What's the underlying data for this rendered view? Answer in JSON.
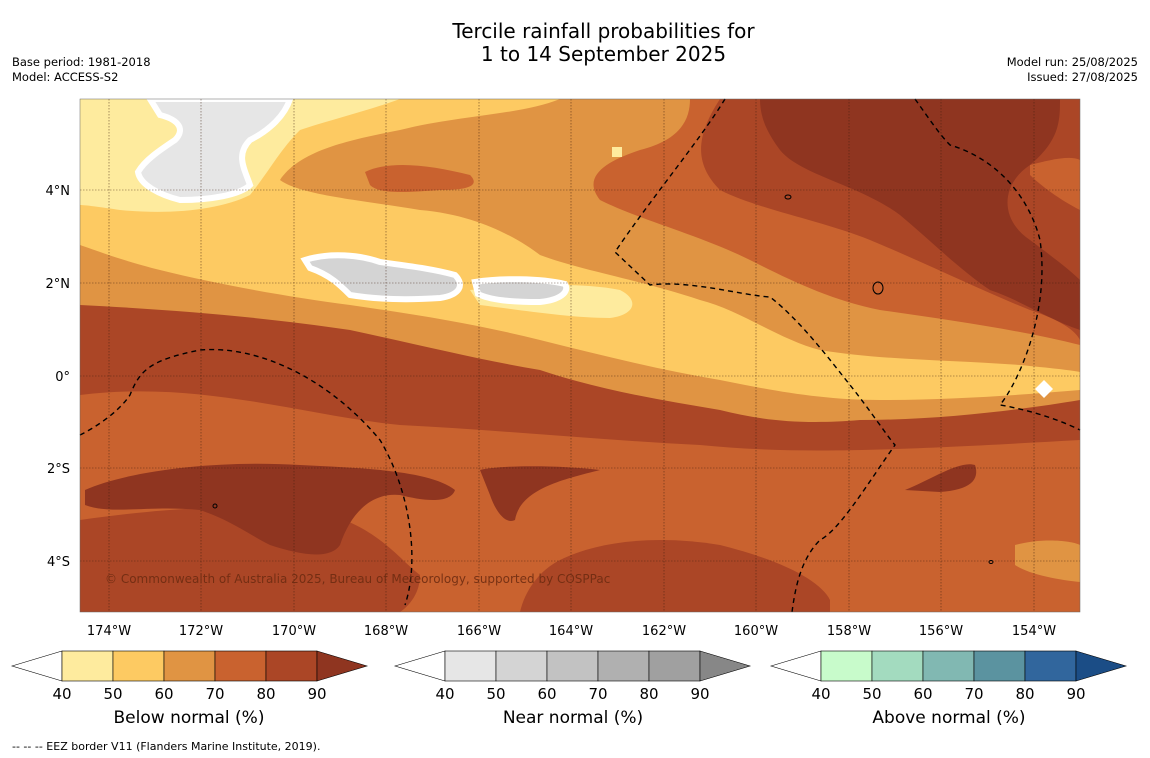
{
  "title": {
    "line1": "Tercile rainfall probabilities for",
    "line2": "1 to 14 September 2025"
  },
  "meta_left": {
    "base_period": "Base period: 1981-2018",
    "model": "Model: ACCESS-S2"
  },
  "meta_right": {
    "model_run": "Model run: 25/08/2025",
    "issued": "Issued: 27/08/2025"
  },
  "map": {
    "lon_labels": [
      "174°W",
      "172°W",
      "170°W",
      "168°W",
      "166°W",
      "164°W",
      "162°W",
      "160°W",
      "158°W",
      "156°W",
      "154°W"
    ],
    "lat_labels": [
      "4°N",
      "2°N",
      "0°",
      "2°S",
      "4°S"
    ],
    "copyright": "© Commonwealth of Australia 2025, Bureau of Meteorology, supported by COSPPac"
  },
  "colorbars": [
    {
      "label": "Below normal (%)",
      "ticks": [
        "40",
        "50",
        "60",
        "70",
        "80",
        "90"
      ],
      "colors": [
        "#ffffff",
        "#feeb9e",
        "#fdca62",
        "#e09443",
        "#c9622f",
        "#ab4626",
        "#8f3520"
      ]
    },
    {
      "label": "Near normal (%)",
      "ticks": [
        "40",
        "50",
        "60",
        "70",
        "80",
        "90"
      ],
      "colors": [
        "#ffffff",
        "#e6e6e6",
        "#d4d4d4",
        "#c2c2c2",
        "#b0b0b0",
        "#a0a0a0",
        "#878787"
      ]
    },
    {
      "label": "Above normal (%)",
      "ticks": [
        "40",
        "50",
        "60",
        "70",
        "80",
        "90"
      ],
      "colors": [
        "#ffffff",
        "#c8fbcb",
        "#a3dbbf",
        "#81b8b2",
        "#5b93a0",
        "#31669d",
        "#1b4d86"
      ]
    }
  ],
  "footer": "--  --  -- EEZ border V11 (Flanders Marine Institute, 2019)."
}
